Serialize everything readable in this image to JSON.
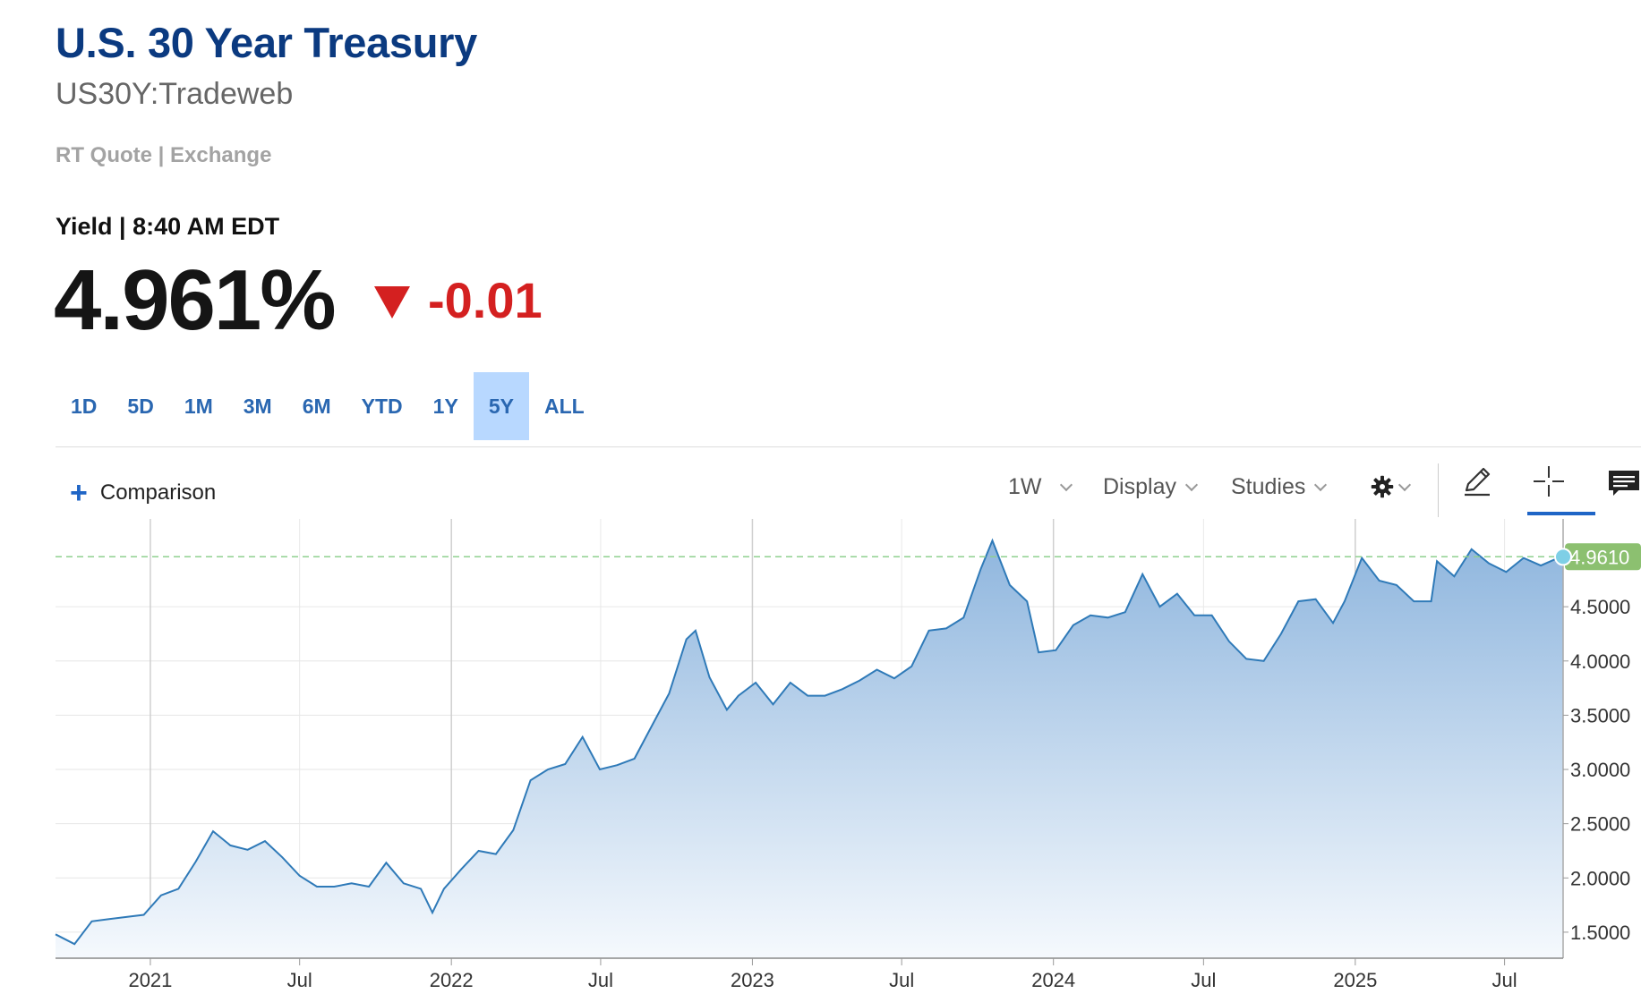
{
  "header": {
    "title": "U.S. 30 Year Treasury",
    "symbol": "US30Y:Tradeweb",
    "source": "RT Quote | Exchange",
    "yield_label": "Yield | 8:40 AM EDT",
    "price": "4.961%",
    "change": "-0.01",
    "colors": {
      "title": "#0b3a80",
      "negative": "#d42020",
      "accent": "#1f65c6"
    }
  },
  "ranges": [
    {
      "label": "1D",
      "active": false
    },
    {
      "label": "5D",
      "active": false
    },
    {
      "label": "1M",
      "active": false
    },
    {
      "label": "3M",
      "active": false
    },
    {
      "label": "6M",
      "active": false
    },
    {
      "label": "YTD",
      "active": false
    },
    {
      "label": "1Y",
      "active": false
    },
    {
      "label": "5Y",
      "active": true
    },
    {
      "label": "ALL",
      "active": false
    }
  ],
  "toolbar": {
    "comparison_label": "Comparison",
    "interval_label": "1W",
    "display_label": "Display",
    "studies_label": "Studies",
    "icons": [
      "gear-icon",
      "pencil-icon",
      "crosshair-icon",
      "comment-icon"
    ]
  },
  "chart_data": {
    "type": "area",
    "title": "",
    "xlabel": "",
    "ylabel": "",
    "x_ticks": [
      "2021",
      "Jul",
      "2022",
      "Jul",
      "2023",
      "Jul",
      "2024",
      "Jul",
      "2025",
      "Jul"
    ],
    "x_tick_dates": [
      "2021-01-01",
      "2021-07-01",
      "2022-01-01",
      "2022-07-01",
      "2023-01-01",
      "2023-07-01",
      "2024-01-01",
      "2024-07-01",
      "2025-01-01",
      "2025-07-01"
    ],
    "y_ticks": [
      "1.5000",
      "2.0000",
      "2.5000",
      "3.0000",
      "3.5000",
      "4.0000",
      "4.5000"
    ],
    "ylim": [
      1.26,
      5.26
    ],
    "xlim": [
      "2020-09-08",
      "2025-09-10"
    ],
    "last_value_label": "4.9610",
    "reference_line": 4.961,
    "grid": true,
    "colors": {
      "line": "#2f7ab8",
      "fill_top": "#8fb6de",
      "fill_bottom": "#f5f9fd",
      "reference": "#8fd08f",
      "last_badge": "#8cc070",
      "marker": "#7ecfe6"
    },
    "series": [
      {
        "x": [
          "2020-09-08",
          "2020-10-01",
          "2020-10-22",
          "2020-11-12",
          "2020-12-03",
          "2020-12-24",
          "2021-01-14",
          "2021-02-04",
          "2021-02-25",
          "2021-03-18",
          "2021-04-08",
          "2021-04-29",
          "2021-05-20",
          "2021-06-10",
          "2021-07-01",
          "2021-07-22",
          "2021-08-12",
          "2021-09-02",
          "2021-09-23",
          "2021-10-14",
          "2021-11-04",
          "2021-11-25",
          "2021-12-09",
          "2021-12-23",
          "2022-01-13",
          "2022-02-03",
          "2022-02-24",
          "2022-03-17",
          "2022-04-07",
          "2022-04-28",
          "2022-05-19",
          "2022-06-09",
          "2022-06-16",
          "2022-06-30",
          "2022-07-21",
          "2022-08-11",
          "2022-09-01",
          "2022-09-22",
          "2022-10-13",
          "2022-10-24",
          "2022-11-10",
          "2022-12-01",
          "2022-12-15",
          "2023-01-05",
          "2023-01-26",
          "2023-02-16",
          "2023-03-09",
          "2023-03-30",
          "2023-04-20",
          "2023-05-11",
          "2023-06-01",
          "2023-06-22",
          "2023-07-13",
          "2023-08-03",
          "2023-08-24",
          "2023-09-14",
          "2023-10-05",
          "2023-10-19",
          "2023-11-09",
          "2023-11-30",
          "2023-12-14",
          "2024-01-04",
          "2024-01-25",
          "2024-02-15",
          "2024-03-07",
          "2024-03-28",
          "2024-04-18",
          "2024-05-09",
          "2024-05-30",
          "2024-06-20",
          "2024-07-11",
          "2024-08-01",
          "2024-08-22",
          "2024-09-12",
          "2024-10-03",
          "2024-10-24",
          "2024-11-14",
          "2024-12-05",
          "2024-12-19",
          "2025-01-09",
          "2025-01-30",
          "2025-02-20",
          "2025-03-13",
          "2025-04-03",
          "2025-04-10",
          "2025-05-01",
          "2025-05-22",
          "2025-06-12",
          "2025-07-03",
          "2025-07-24",
          "2025-08-14",
          "2025-09-04",
          "2025-09-10"
        ],
        "values": [
          1.48,
          1.39,
          1.6,
          1.62,
          1.64,
          1.66,
          1.84,
          1.9,
          2.15,
          2.43,
          2.3,
          2.26,
          2.34,
          2.19,
          2.02,
          1.92,
          1.92,
          1.95,
          1.92,
          2.14,
          1.95,
          1.9,
          1.68,
          1.9,
          2.08,
          2.25,
          2.22,
          2.44,
          2.9,
          3.0,
          3.05,
          3.3,
          3.2,
          3.0,
          3.04,
          3.1,
          3.4,
          3.7,
          4.2,
          4.28,
          3.85,
          3.55,
          3.68,
          3.8,
          3.6,
          3.8,
          3.68,
          3.68,
          3.74,
          3.82,
          3.92,
          3.84,
          3.95,
          4.28,
          4.3,
          4.4,
          4.85,
          5.11,
          4.7,
          4.55,
          4.08,
          4.1,
          4.33,
          4.42,
          4.4,
          4.45,
          4.8,
          4.5,
          4.62,
          4.42,
          4.42,
          4.18,
          4.02,
          4.0,
          4.25,
          4.55,
          4.57,
          4.35,
          4.55,
          4.95,
          4.74,
          4.7,
          4.55,
          4.55,
          4.92,
          4.78,
          5.03,
          4.9,
          4.82,
          4.95,
          4.88,
          4.95,
          4.96
        ]
      }
    ]
  }
}
